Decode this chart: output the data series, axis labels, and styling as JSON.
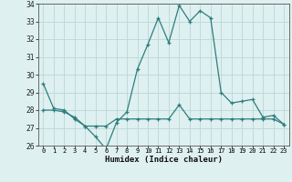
{
  "xlabel": "Humidex (Indice chaleur)",
  "x": [
    0,
    1,
    2,
    3,
    4,
    5,
    6,
    7,
    8,
    9,
    10,
    11,
    12,
    13,
    14,
    15,
    16,
    17,
    18,
    19,
    20,
    21,
    22,
    23
  ],
  "line1": [
    29.5,
    28.1,
    28.0,
    27.5,
    27.1,
    26.5,
    25.8,
    27.3,
    27.9,
    30.3,
    31.7,
    33.2,
    31.8,
    33.9,
    33.0,
    33.6,
    33.2,
    29.0,
    28.4,
    28.5,
    28.6,
    27.6,
    27.7,
    27.2
  ],
  "line2": [
    28.0,
    28.0,
    27.9,
    27.6,
    27.1,
    27.1,
    27.1,
    27.5,
    27.5,
    27.5,
    27.5,
    27.5,
    27.5,
    28.3,
    27.5,
    27.5,
    27.5,
    27.5,
    27.5,
    27.5,
    27.5,
    27.5,
    27.5,
    27.2
  ],
  "line_color": "#2d7d7d",
  "bg_color": "#dff0f0",
  "grid_color": "#b8d8d8",
  "ylim": [
    26,
    34
  ],
  "yticks": [
    26,
    27,
    28,
    29,
    30,
    31,
    32,
    33,
    34
  ],
  "xlim": [
    -0.5,
    23.5
  ]
}
